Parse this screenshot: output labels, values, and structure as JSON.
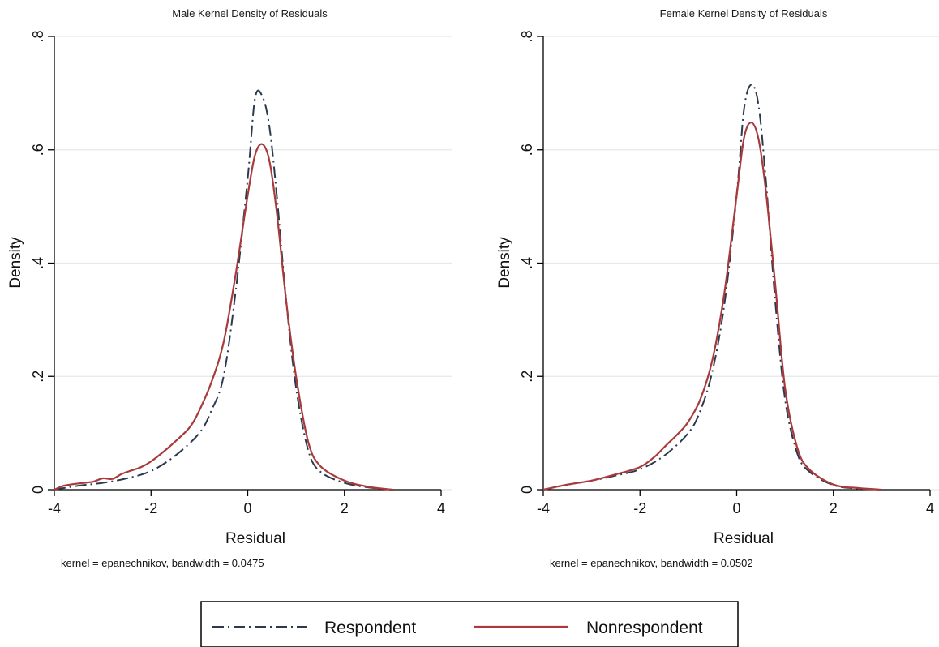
{
  "colors": {
    "respondent": "#2b3a4e",
    "nonrespondent": "#a83a3c",
    "gridline": "#e3e9ec",
    "axis": "#000000"
  },
  "legend": {
    "entries": [
      {
        "label": "Respondent",
        "style": "dash-dot"
      },
      {
        "label": "Nonrespondent",
        "style": "solid"
      }
    ],
    "placement": "bottom-center"
  },
  "chart_data": [
    {
      "type": "line",
      "title": "Male Kernel Density of Residuals",
      "xlabel": "Residual",
      "ylabel": "Density",
      "xlim": [
        -4,
        4
      ],
      "ylim": [
        0,
        0.8
      ],
      "x_ticks": [
        -4,
        -2,
        0,
        2,
        4
      ],
      "x_tick_labels": [
        "-4",
        "-2",
        "0",
        "2",
        "4"
      ],
      "y_ticks": [
        0,
        0.2,
        0.4,
        0.6,
        0.8
      ],
      "y_tick_labels": [
        "0",
        ".2",
        ".4",
        ".6",
        ".8"
      ],
      "grid": "horizontal",
      "note": "kernel = epanechnikov, bandwidth = 0.0475",
      "series": [
        {
          "name": "Respondent",
          "style": "dash-dot",
          "x": [
            -4,
            -3.5,
            -3,
            -2.5,
            -2,
            -1.5,
            -1,
            -0.75,
            -0.5,
            -0.25,
            0,
            0.15,
            0.3,
            0.45,
            0.6,
            0.8,
            1,
            1.25,
            1.5,
            2,
            2.5,
            3
          ],
          "y": [
            0,
            0.007,
            0.012,
            0.02,
            0.033,
            0.06,
            0.1,
            0.14,
            0.2,
            0.35,
            0.55,
            0.69,
            0.695,
            0.64,
            0.52,
            0.33,
            0.18,
            0.07,
            0.032,
            0.012,
            0.004,
            0
          ]
        },
        {
          "name": "Nonrespondent",
          "style": "solid",
          "x": [
            -4,
            -3.8,
            -3.5,
            -3.2,
            -3,
            -2.8,
            -2.6,
            -2.4,
            -2.2,
            -2,
            -1.7,
            -1.5,
            -1.2,
            -1,
            -0.75,
            -0.5,
            -0.25,
            0,
            0.15,
            0.3,
            0.45,
            0.6,
            0.8,
            1,
            1.25,
            1.5,
            2,
            2.5,
            3
          ],
          "y": [
            0,
            0.007,
            0.011,
            0.014,
            0.02,
            0.019,
            0.028,
            0.034,
            0.04,
            0.05,
            0.07,
            0.085,
            0.11,
            0.14,
            0.19,
            0.26,
            0.38,
            0.52,
            0.59,
            0.61,
            0.58,
            0.49,
            0.33,
            0.2,
            0.085,
            0.042,
            0.016,
            0.005,
            0
          ]
        }
      ]
    },
    {
      "type": "line",
      "title": "Female Kernel Density of Residuals",
      "xlabel": "Residual",
      "ylabel": "Density",
      "xlim": [
        -4,
        4
      ],
      "ylim": [
        0,
        0.8
      ],
      "x_ticks": [
        -4,
        -2,
        0,
        2,
        4
      ],
      "x_tick_labels": [
        "-4",
        "-2",
        "0",
        "2",
        "4"
      ],
      "y_ticks": [
        0,
        0.2,
        0.4,
        0.6,
        0.8
      ],
      "y_tick_labels": [
        "0",
        ".2",
        ".4",
        ".6",
        ".8"
      ],
      "grid": "horizontal",
      "note": "kernel = epanechnikov, bandwidth = 0.0502",
      "series": [
        {
          "name": "Respondent",
          "style": "dash-dot",
          "x": [
            -4,
            -3.5,
            -3,
            -2.5,
            -2,
            -1.5,
            -1,
            -0.75,
            -0.5,
            -0.25,
            0,
            0.15,
            0.3,
            0.45,
            0.6,
            0.8,
            1,
            1.25,
            1.5,
            2,
            2.5,
            3
          ],
          "y": [
            0,
            0.009,
            0.016,
            0.025,
            0.036,
            0.06,
            0.1,
            0.14,
            0.21,
            0.33,
            0.52,
            0.67,
            0.715,
            0.68,
            0.55,
            0.33,
            0.16,
            0.065,
            0.032,
            0.008,
            0.002,
            0
          ]
        },
        {
          "name": "Nonrespondent",
          "style": "solid",
          "x": [
            -4,
            -3.5,
            -3,
            -2.5,
            -2,
            -1.7,
            -1.5,
            -1.2,
            -1,
            -0.75,
            -0.5,
            -0.25,
            0,
            0.15,
            0.3,
            0.45,
            0.6,
            0.8,
            1,
            1.25,
            1.5,
            2,
            2.5,
            3
          ],
          "y": [
            0,
            0.009,
            0.016,
            0.027,
            0.04,
            0.058,
            0.075,
            0.1,
            0.12,
            0.16,
            0.23,
            0.35,
            0.52,
            0.62,
            0.648,
            0.62,
            0.53,
            0.36,
            0.18,
            0.075,
            0.036,
            0.009,
            0.003,
            0
          ]
        }
      ]
    }
  ]
}
